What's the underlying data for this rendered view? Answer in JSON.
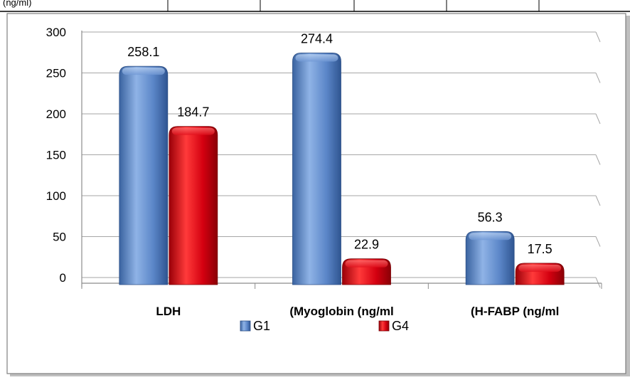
{
  "header_table": {
    "fragment_text": "(ng/ml)"
  },
  "chart_data": {
    "type": "bar",
    "style": "3d-cylinder",
    "categories": [
      "LDH",
      "(Myoglobin (ng/ml",
      "(H-FABP  (ng/ml"
    ],
    "series": [
      {
        "name": "G1",
        "values": [
          258.1,
          274.4,
          56.3
        ],
        "color": "#4F81BD"
      },
      {
        "name": "G4",
        "values": [
          184.7,
          22.9,
          17.5
        ],
        "color": "#C0000E"
      }
    ],
    "ylim": [
      0,
      300
    ],
    "yticks": [
      0,
      50,
      100,
      150,
      200,
      250,
      300
    ],
    "grid": true,
    "legend_position": "bottom"
  }
}
